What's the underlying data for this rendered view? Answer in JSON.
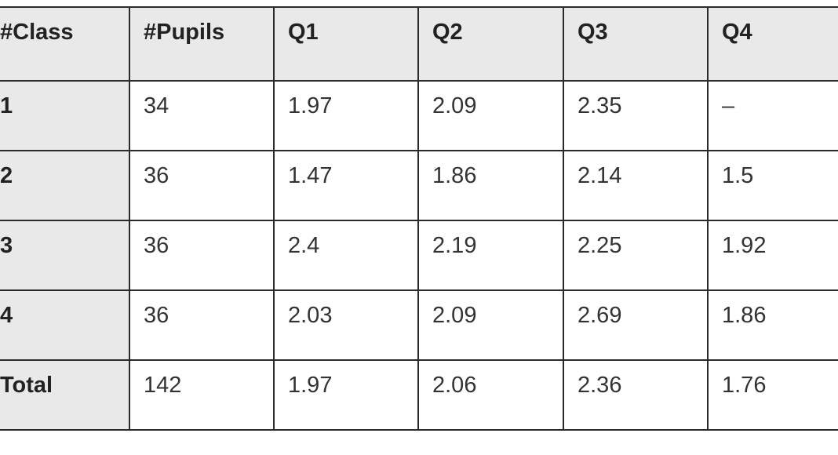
{
  "table": {
    "headers": [
      "#Class",
      "#Pupils",
      "Q1",
      "Q2",
      "Q3",
      "Q4"
    ],
    "rows": [
      [
        "1",
        "34",
        "1.97",
        "2.09",
        "2.35",
        "–"
      ],
      [
        "2",
        "36",
        "1.47",
        "1.86",
        "2.14",
        "1.5"
      ],
      [
        "3",
        "36",
        "2.4",
        "2.19",
        "2.25",
        "1.92"
      ],
      [
        "4",
        "36",
        "2.03",
        "2.09",
        "2.69",
        "1.86"
      ],
      [
        "Total",
        "142",
        "1.97",
        "2.06",
        "2.36",
        "1.76"
      ]
    ]
  },
  "colors": {
    "header_bg": "#e9e9e9",
    "border": "#2a2a2a",
    "cell_bg": "#ffffff"
  }
}
